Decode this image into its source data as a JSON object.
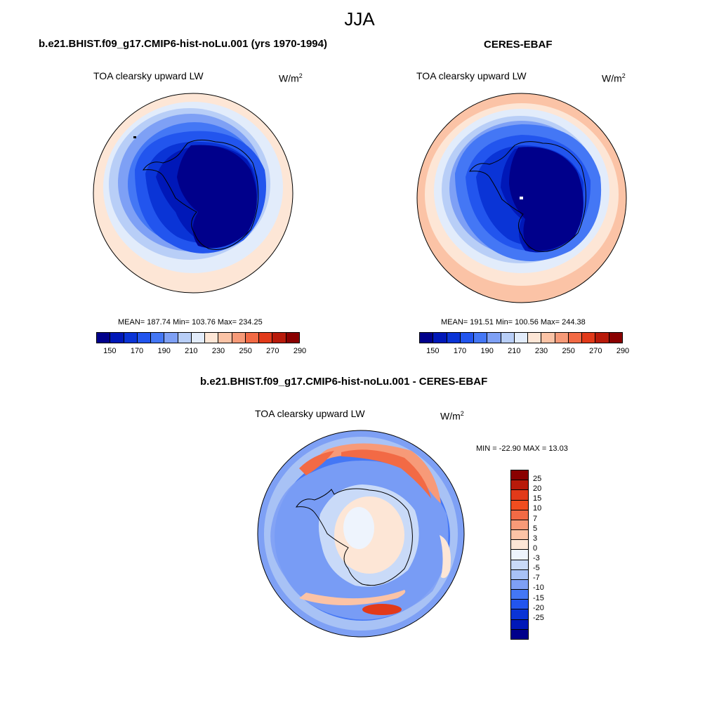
{
  "title": "JJA",
  "units": "W/m",
  "units_exp": "2",
  "panels": [
    {
      "title": "b.e21.BHIST.f09_g17.CMIP6-hist-noLu.001 (yrs 1970-1994)",
      "variable": "TOA clearsky upward LW",
      "stats": "MEAN= 187.74  Min= 103.76  Max= 234.25"
    },
    {
      "title": "CERES-EBAF",
      "variable": "TOA clearsky upward LW",
      "stats": "MEAN= 191.51  Min= 100.56  Max= 244.38"
    },
    {
      "title": "b.e21.BHIST.f09_g17.CMIP6-hist-noLu.001 - CERES-EBAF",
      "variable": "TOA clearsky upward LW",
      "stats": "MIN = -22.90 MAX =  13.03"
    }
  ],
  "colorbar_abs": {
    "colors": [
      "#00008b",
      "#0018b8",
      "#0a34d6",
      "#2255ee",
      "#4477f5",
      "#7ea0f5",
      "#b8cef7",
      "#e2ecfb",
      "#fde6d6",
      "#fbc3a6",
      "#f79a78",
      "#f26a45",
      "#e23a1a",
      "#b81a0a",
      "#8a0000"
    ],
    "labels": [
      "150",
      "170",
      "190",
      "210",
      "230",
      "250",
      "270",
      "290"
    ]
  },
  "colorbar_diff": {
    "colors": [
      "#8a0000",
      "#b81a0a",
      "#e23a1a",
      "#f04d1f",
      "#f26a45",
      "#f79a78",
      "#fbc3a6",
      "#fde6d6",
      "#eef4fd",
      "#c9daf8",
      "#a8c2f5",
      "#7ea0f5",
      "#4477f5",
      "#2255ee",
      "#0a34d6",
      "#0018b8",
      "#00008b"
    ],
    "labels": [
      "25",
      "20",
      "15",
      "10",
      "7",
      "5",
      "3",
      "0",
      "-3",
      "-5",
      "-7",
      "-10",
      "-15",
      "-20",
      "-25"
    ]
  }
}
